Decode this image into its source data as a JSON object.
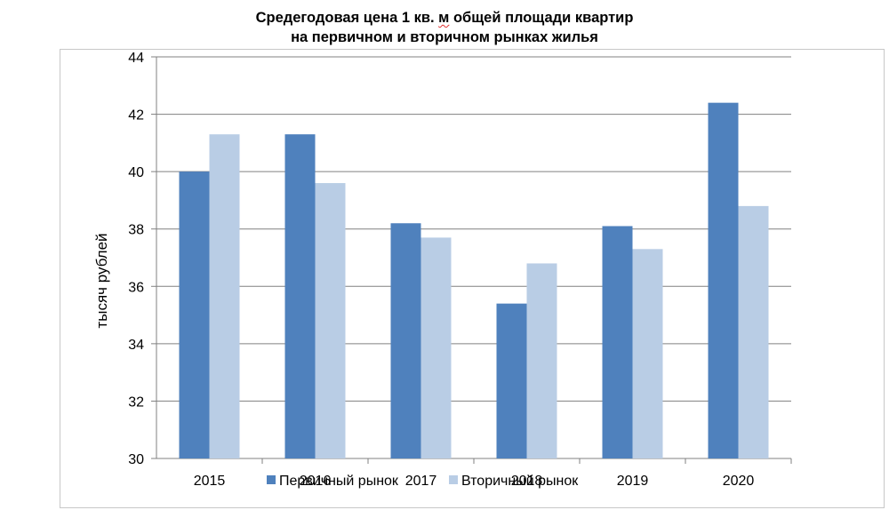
{
  "title_line1_a": "Средегодовая цена 1 кв. ",
  "title_line1_b": "м",
  "title_line1_c": " общей площади квартир",
  "title_line2": "на первичном и вторичном рынках жилья",
  "chart_data": {
    "type": "bar",
    "title": "Средегодовая цена 1 кв. м общей площади квартир на первичном и вторичном рынках жилья",
    "xlabel": "",
    "ylabel": "тысяч рублей",
    "categories": [
      "2015",
      "2016",
      "2017",
      "2018",
      "2019",
      "2020"
    ],
    "series": [
      {
        "name": "Первичный рынок",
        "values": [
          40.0,
          41.3,
          38.2,
          35.4,
          38.1,
          42.4
        ],
        "color": "#4f81bd"
      },
      {
        "name": "Вторичный рынок",
        "values": [
          41.3,
          39.6,
          37.7,
          36.8,
          37.3,
          38.8
        ],
        "color": "#b9cde5"
      }
    ],
    "ylim": [
      30,
      44
    ],
    "yticks": [
      "30",
      "32",
      "34",
      "36",
      "38",
      "40",
      "42",
      "44"
    ],
    "grid": true,
    "legend_position": "bottom"
  }
}
